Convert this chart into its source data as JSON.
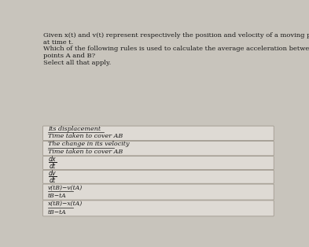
{
  "header_lines": [
    "Given x(t) and v(t) represent respectively the position and velocity of a moving particle",
    "at time t.",
    "Which of the following rules is used to calculate the average acceleration between two",
    "points A and B?",
    "Select all that apply."
  ],
  "bg_color": "#c8c4bc",
  "box_bg": "#dedad4",
  "box_border": "#a0998e",
  "text_color": "#1a1a1a",
  "header_fontsize": 6.0,
  "option_fontsize": 5.8,
  "math_fontsize": 6.5,
  "options": [
    {
      "numerator": "Its displacement",
      "denominator": "Time taken to cover AB",
      "type": "fraction_text",
      "num_style": "italic",
      "den_style": "italic"
    },
    {
      "numerator": "The change in its velocity",
      "denominator": "Time taken to cover AB",
      "type": "fraction_text",
      "num_style": "italic",
      "den_style": "italic"
    },
    {
      "numerator": "dx",
      "denominator": "dt",
      "type": "fraction_math",
      "math_expr": "$\\frac{dx}{dt}$"
    },
    {
      "numerator": "dv",
      "denominator": "dt",
      "type": "fraction_math",
      "math_expr": "$\\frac{dv}{dt}$"
    },
    {
      "numerator": "v(t_B) - v(t_A)",
      "denominator": "t_B - t_A",
      "type": "fraction_text_small",
      "num_text": "v(tB)−v(tA)",
      "den_text": "tB−tA",
      "num_style": "italic",
      "den_style": "italic"
    },
    {
      "numerator": "x(t_B) - x(t_A)",
      "denominator": "t_B - t_A",
      "type": "fraction_text_small",
      "num_text": "x(tB)−x(tA)",
      "den_text": "tB−tA",
      "num_style": "italic",
      "den_style": "italic"
    }
  ]
}
